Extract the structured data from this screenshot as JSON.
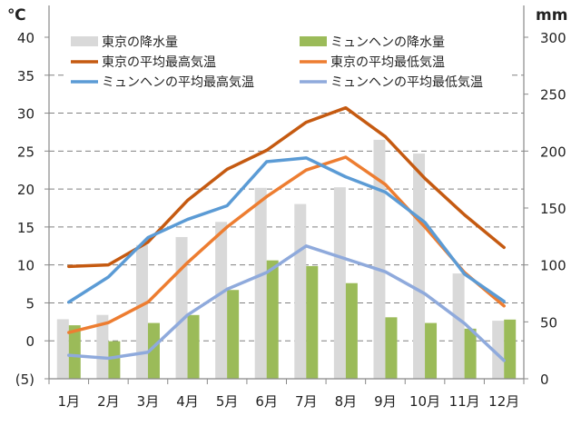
{
  "chart_data": {
    "type": "bar+line",
    "left_unit": "℃",
    "right_unit": "mm",
    "categories": [
      "1月",
      "2月",
      "3月",
      "4月",
      "5月",
      "6月",
      "7月",
      "8月",
      "9月",
      "10月",
      "11月",
      "12月"
    ],
    "left_axis": {
      "range": [
        -5,
        40
      ],
      "ticks": [
        -5,
        0,
        5,
        10,
        15,
        20,
        25,
        30,
        35,
        40
      ],
      "tick_labels": [
        "(5)",
        "0",
        "5",
        "10",
        "15",
        "20",
        "25",
        "30",
        "35",
        "40"
      ]
    },
    "right_axis": {
      "range": [
        0,
        300
      ],
      "ticks": [
        0,
        50,
        100,
        150,
        200,
        250,
        300
      ]
    },
    "grid": "dashed horizontal",
    "legend_placement": "top",
    "bars": [
      {
        "name": "東京の降水量",
        "color": "#d9d9d9",
        "axis": "right",
        "values": [
          52.3,
          56.1,
          117.5,
          124.5,
          137.8,
          167.7,
          153.5,
          168.2,
          209.9,
          197.8,
          92.5,
          51.0
        ]
      },
      {
        "name": "ミュンヘンの降水量",
        "color": "#9bbb59",
        "axis": "right",
        "values": [
          47,
          33,
          49,
          56,
          78,
          104,
          99,
          84,
          54,
          49,
          44,
          52
        ]
      }
    ],
    "lines": [
      {
        "name": "東京の平均最高気温",
        "color": "#c55a11",
        "axis": "left",
        "values": [
          9.8,
          10.0,
          13.0,
          18.5,
          22.6,
          25.1,
          28.8,
          30.7,
          26.9,
          21.4,
          16.6,
          12.3
        ]
      },
      {
        "name": "東京の平均最低気温",
        "color": "#ed7d31",
        "axis": "left",
        "values": [
          1.1,
          2.4,
          5.1,
          10.3,
          15.0,
          19.0,
          22.5,
          24.2,
          20.6,
          15.0,
          9.0,
          4.6
        ]
      },
      {
        "name": "ミュンヘンの平均最高気温",
        "color": "#5b9bd5",
        "axis": "left",
        "values": [
          5.1,
          8.4,
          13.6,
          16.0,
          17.8,
          23.6,
          24.1,
          21.6,
          19.6,
          15.6,
          8.8,
          5.2
        ]
      },
      {
        "name": "ミュンヘンの平均最低気温",
        "color": "#8faadc",
        "axis": "left",
        "values": [
          -1.9,
          -2.3,
          -1.5,
          3.4,
          6.8,
          9.0,
          12.5,
          10.8,
          9.1,
          6.2,
          2.3,
          -2.6
        ]
      }
    ]
  }
}
